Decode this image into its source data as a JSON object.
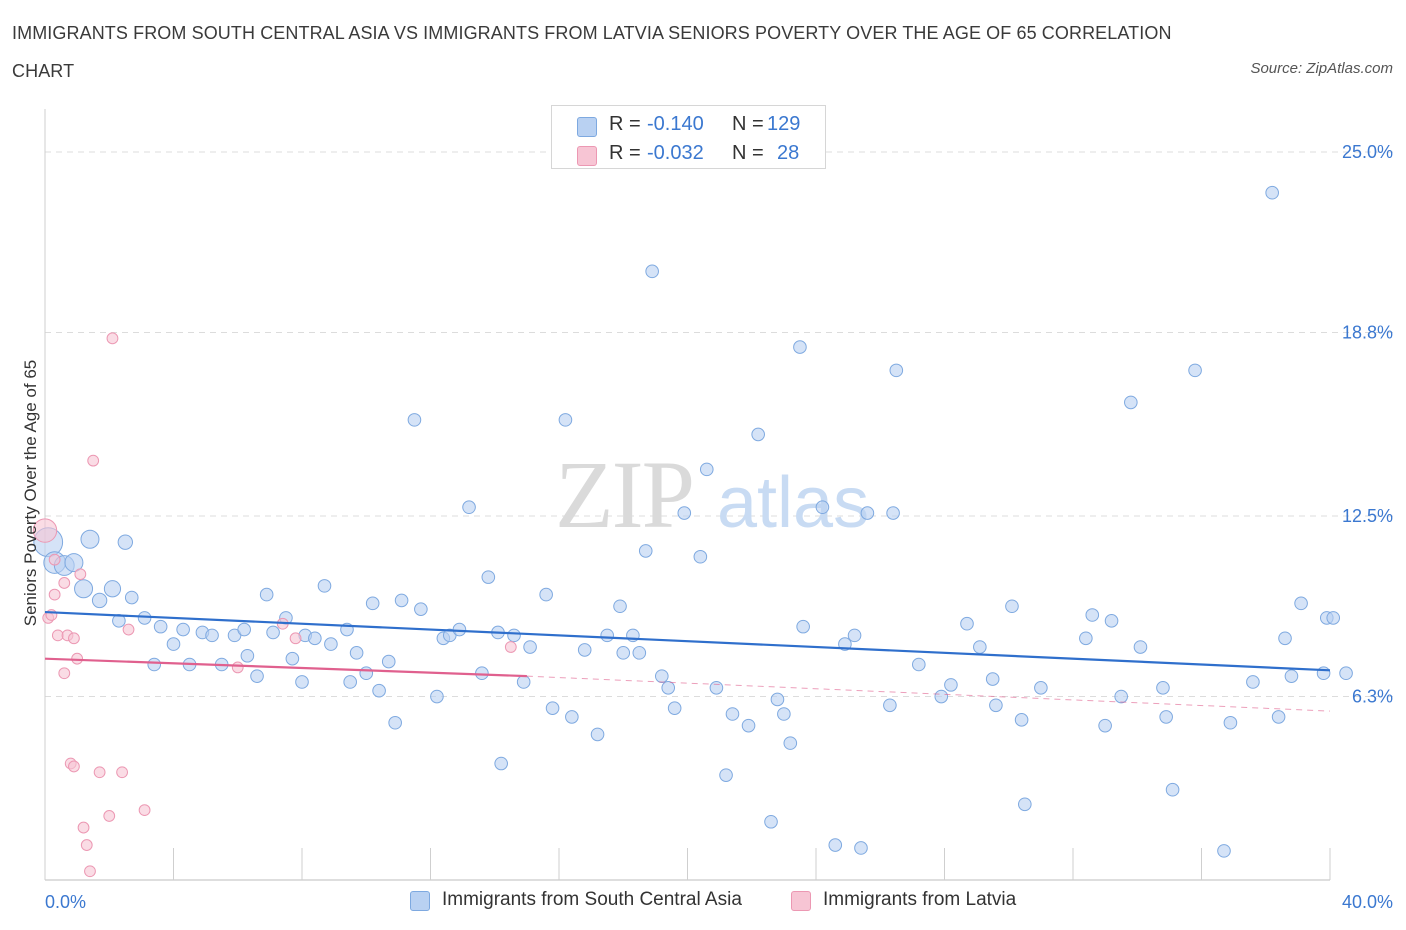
{
  "title": "IMMIGRANTS FROM SOUTH CENTRAL ASIA VS IMMIGRANTS FROM LATVIA SENIORS POVERTY OVER THE AGE OF 65 CORRELATION CHART",
  "source": "Source: ZipAtlas.com",
  "watermark": {
    "zip": "ZIP",
    "atlas": "atlas"
  },
  "legend": {
    "rows": [
      {
        "r_label": "R =",
        "r_value": "-0.140",
        "n_label": "N =",
        "n_value": "129"
      },
      {
        "r_label": "R =",
        "r_value": "-0.032",
        "n_label": "N =",
        "n_value": "28"
      }
    ]
  },
  "colors": {
    "blue_fill": "#b9d1f2",
    "blue_stroke": "#7ea9e0",
    "blue_line": "#2f6fcc",
    "pink_fill": "#f7c5d4",
    "pink_stroke": "#ec98b3",
    "pink_line": "#e0608e",
    "axis_text": "#3b78d0",
    "grid": "#dcdcdc"
  },
  "chart_data": {
    "type": "scatter",
    "title": "IMMIGRANTS FROM SOUTH CENTRAL ASIA VS IMMIGRANTS FROM LATVIA SENIORS POVERTY OVER THE AGE OF 65 CORRELATION CHART",
    "ylabel": "Seniors Poverty Over the Age of 65",
    "xlabel": "",
    "xlim": [
      0,
      40
    ],
    "ylim": [
      0,
      26.2
    ],
    "x_tick_labels": [
      "0.0%",
      "40.0%"
    ],
    "y_ticks": [
      6.3,
      12.5,
      18.8,
      25.0
    ],
    "y_tick_labels": [
      "6.3%",
      "12.5%",
      "18.8%",
      "25.0%"
    ],
    "grid": true,
    "legend_position": "top-center",
    "series": [
      {
        "name": "Immigrants from South Central Asia",
        "color": "#b9d1f2",
        "trend": {
          "x": [
            0,
            40
          ],
          "y": [
            9.2,
            7.2
          ]
        },
        "points": [
          [
            0.1,
            11.6,
            1.6
          ],
          [
            0.3,
            10.9,
            1.2
          ],
          [
            0.6,
            10.8,
            1.1
          ],
          [
            1.4,
            11.7,
            1.0
          ],
          [
            2.5,
            11.6,
            0.8
          ],
          [
            0.9,
            10.9,
            1.0
          ],
          [
            1.2,
            10.0,
            1.0
          ],
          [
            1.7,
            9.6,
            0.8
          ],
          [
            2.1,
            10.0,
            0.9
          ],
          [
            2.3,
            8.9,
            0.7
          ],
          [
            2.7,
            9.7,
            0.7
          ],
          [
            3.1,
            9.0,
            0.7
          ],
          [
            3.6,
            8.7,
            0.7
          ],
          [
            3.4,
            7.4,
            0.7
          ],
          [
            4.0,
            8.1,
            0.7
          ],
          [
            4.3,
            8.6,
            0.7
          ],
          [
            4.5,
            7.4,
            0.7
          ],
          [
            4.9,
            8.5,
            0.7
          ],
          [
            5.2,
            8.4,
            0.7
          ],
          [
            5.5,
            7.4,
            0.7
          ],
          [
            5.9,
            8.4,
            0.7
          ],
          [
            6.2,
            8.6,
            0.7
          ],
          [
            6.3,
            7.7,
            0.7
          ],
          [
            6.6,
            7.0,
            0.7
          ],
          [
            6.9,
            9.8,
            0.7
          ],
          [
            7.1,
            8.5,
            0.7
          ],
          [
            7.5,
            9.0,
            0.7
          ],
          [
            7.7,
            7.6,
            0.7
          ],
          [
            8.0,
            6.8,
            0.7
          ],
          [
            8.1,
            8.4,
            0.7
          ],
          [
            8.4,
            8.3,
            0.7
          ],
          [
            8.7,
            10.1,
            0.7
          ],
          [
            8.9,
            8.1,
            0.7
          ],
          [
            9.4,
            8.6,
            0.7
          ],
          [
            9.5,
            6.8,
            0.7
          ],
          [
            9.7,
            7.8,
            0.7
          ],
          [
            10.0,
            7.1,
            0.7
          ],
          [
            10.4,
            6.5,
            0.7
          ],
          [
            10.2,
            9.5,
            0.7
          ],
          [
            10.7,
            7.5,
            0.7
          ],
          [
            10.9,
            5.4,
            0.7
          ],
          [
            11.1,
            9.6,
            0.7
          ],
          [
            11.5,
            15.8,
            0.7
          ],
          [
            11.7,
            9.3,
            0.7
          ],
          [
            12.2,
            6.3,
            0.7
          ],
          [
            12.4,
            8.3,
            0.7
          ],
          [
            12.6,
            8.4,
            0.7
          ],
          [
            12.9,
            8.6,
            0.7
          ],
          [
            13.2,
            12.8,
            0.7
          ],
          [
            13.6,
            7.1,
            0.7
          ],
          [
            13.8,
            10.4,
            0.7
          ],
          [
            14.1,
            8.5,
            0.7
          ],
          [
            14.2,
            4.0,
            0.7
          ],
          [
            14.6,
            8.4,
            0.7
          ],
          [
            14.9,
            6.8,
            0.7
          ],
          [
            15.1,
            8.0,
            0.7
          ],
          [
            15.6,
            9.8,
            0.7
          ],
          [
            15.8,
            5.9,
            0.7
          ],
          [
            16.2,
            15.8,
            0.7
          ],
          [
            16.4,
            5.6,
            0.7
          ],
          [
            16.8,
            7.9,
            0.7
          ],
          [
            17.2,
            5.0,
            0.7
          ],
          [
            17.5,
            8.4,
            0.7
          ],
          [
            17.9,
            9.4,
            0.7
          ],
          [
            18.0,
            7.8,
            0.7
          ],
          [
            18.3,
            8.4,
            0.7
          ],
          [
            18.5,
            7.8,
            0.7
          ],
          [
            18.7,
            11.3,
            0.7
          ],
          [
            19.2,
            7.0,
            0.7
          ],
          [
            19.4,
            6.6,
            0.7
          ],
          [
            19.6,
            5.9,
            0.7
          ],
          [
            18.9,
            20.9,
            0.7
          ],
          [
            20.4,
            11.1,
            0.7
          ],
          [
            20.6,
            14.1,
            0.7
          ],
          [
            20.9,
            6.6,
            0.7
          ],
          [
            21.2,
            3.6,
            0.7
          ],
          [
            21.4,
            5.7,
            0.7
          ],
          [
            21.9,
            5.3,
            0.7
          ],
          [
            22.2,
            15.3,
            0.7
          ],
          [
            22.6,
            2.0,
            0.7
          ],
          [
            22.8,
            6.2,
            0.7
          ],
          [
            23.0,
            5.7,
            0.7
          ],
          [
            23.2,
            4.7,
            0.7
          ],
          [
            23.5,
            18.3,
            0.7
          ],
          [
            23.6,
            8.7,
            0.7
          ],
          [
            24.2,
            12.8,
            0.7
          ],
          [
            24.6,
            1.2,
            0.7
          ],
          [
            24.9,
            8.1,
            0.7
          ],
          [
            25.2,
            8.4,
            0.7
          ],
          [
            25.4,
            1.1,
            0.7
          ],
          [
            25.6,
            12.6,
            0.7
          ],
          [
            26.3,
            6.0,
            0.7
          ],
          [
            26.4,
            12.6,
            0.7
          ],
          [
            27.2,
            7.4,
            0.7
          ],
          [
            27.9,
            6.3,
            0.7
          ],
          [
            28.2,
            6.7,
            0.7
          ],
          [
            28.7,
            8.8,
            0.7
          ],
          [
            29.1,
            8.0,
            0.7
          ],
          [
            29.5,
            6.9,
            0.7
          ],
          [
            29.6,
            6.0,
            0.7
          ],
          [
            30.1,
            9.4,
            0.7
          ],
          [
            30.4,
            5.5,
            0.7
          ],
          [
            30.5,
            2.6,
            0.7
          ],
          [
            31.0,
            6.6,
            0.7
          ],
          [
            32.6,
            9.1,
            0.7
          ],
          [
            32.4,
            8.3,
            0.7
          ],
          [
            33.0,
            5.3,
            0.7
          ],
          [
            33.2,
            8.9,
            0.7
          ],
          [
            33.5,
            6.3,
            0.7
          ],
          [
            34.1,
            8.0,
            0.7
          ],
          [
            33.8,
            16.4,
            0.7
          ],
          [
            34.8,
            6.6,
            0.7
          ],
          [
            34.9,
            5.6,
            0.7
          ],
          [
            35.1,
            3.1,
            0.7
          ],
          [
            36.7,
            1.0,
            0.7
          ],
          [
            37.6,
            6.8,
            0.7
          ],
          [
            38.4,
            5.6,
            0.7
          ],
          [
            38.8,
            7.0,
            0.7
          ],
          [
            39.1,
            9.5,
            0.7
          ],
          [
            36.9,
            5.4,
            0.7
          ],
          [
            38.2,
            23.6,
            0.7
          ],
          [
            39.8,
            7.1,
            0.7
          ],
          [
            39.9,
            9.0,
            0.7
          ],
          [
            38.6,
            8.3,
            0.7
          ],
          [
            40.1,
            9.0,
            0.7
          ],
          [
            35.8,
            17.5,
            0.7
          ],
          [
            26.5,
            17.5,
            0.7
          ],
          [
            19.9,
            12.6,
            0.7
          ],
          [
            40.5,
            7.1,
            0.7
          ]
        ]
      },
      {
        "name": "Immigrants from Latvia",
        "color": "#f7c5d4",
        "trend": {
          "x": [
            0,
            15
          ],
          "y": [
            7.6,
            7.0
          ]
        },
        "trend_dashed": {
          "x": [
            15,
            40
          ],
          "y": [
            7.0,
            5.8
          ]
        },
        "points": [
          [
            0.0,
            12.0,
            1.3
          ],
          [
            0.1,
            9.0,
            0.6
          ],
          [
            0.2,
            9.1,
            0.6
          ],
          [
            0.3,
            9.8,
            0.6
          ],
          [
            0.4,
            8.4,
            0.6
          ],
          [
            0.6,
            10.2,
            0.6
          ],
          [
            0.6,
            7.1,
            0.6
          ],
          [
            0.7,
            8.4,
            0.6
          ],
          [
            0.8,
            4.0,
            0.6
          ],
          [
            0.9,
            8.3,
            0.6
          ],
          [
            0.9,
            3.9,
            0.6
          ],
          [
            1.0,
            7.6,
            0.6
          ],
          [
            1.1,
            10.5,
            0.6
          ],
          [
            1.2,
            1.8,
            0.6
          ],
          [
            1.3,
            1.2,
            0.6
          ],
          [
            1.4,
            0.3,
            0.6
          ],
          [
            1.5,
            14.4,
            0.6
          ],
          [
            1.7,
            3.7,
            0.6
          ],
          [
            2.0,
            2.2,
            0.6
          ],
          [
            2.1,
            18.6,
            0.6
          ],
          [
            2.4,
            3.7,
            0.6
          ],
          [
            2.6,
            8.6,
            0.6
          ],
          [
            3.1,
            2.4,
            0.6
          ],
          [
            0.3,
            11.0,
            0.6
          ],
          [
            7.4,
            8.8,
            0.6
          ],
          [
            7.8,
            8.3,
            0.6
          ],
          [
            6.0,
            7.3,
            0.6
          ],
          [
            14.5,
            8.0,
            0.6
          ]
        ]
      }
    ]
  },
  "bottom_legend": [
    {
      "label": "Immigrants from South Central Asia"
    },
    {
      "label": "Immigrants from Latvia"
    }
  ]
}
